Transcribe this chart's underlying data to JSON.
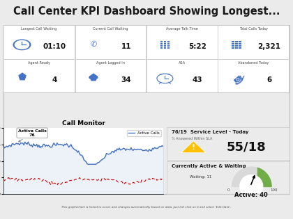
{
  "title": "Call Center KPI Dashboard Showing Longest...",
  "title_fontsize": 10.5,
  "bg_color": "#ebebeb",
  "card_bg": "#ffffff",
  "border_color": "#cccccc",
  "blue_icon_color": "#4472c4",
  "kpi_row1": [
    {
      "label": "Longest Call Waiting",
      "value": "01:10"
    },
    {
      "label": "Current Call Waiting",
      "value": "11"
    },
    {
      "label": "Average Talk Time",
      "value": "5:22"
    },
    {
      "label": "Total Calls Today",
      "value": "2,321"
    }
  ],
  "kpi_row2": [
    {
      "label": "Agent Ready",
      "value": "4"
    },
    {
      "label": "Agent Logged In",
      "value": "34"
    },
    {
      "label": "ASA",
      "value": "43"
    },
    {
      "label": "Abandoned Today",
      "value": "6"
    }
  ],
  "call_monitor_title": "Call Monitor",
  "active_calls_legend": "Active Calls",
  "active_calls_label": "Active Calls\n76",
  "blue_line_color": "#4472c4",
  "red_dashed_color": "#cc0000",
  "blue_fill_color": "#b8cce4",
  "service_level_title": "76/19  Service Level - Today",
  "service_level_sub": "% Answered Within SLA",
  "service_level_value": "55/18",
  "warning_color": "#ffc000",
  "active_waiting_title": "Currently Active & Waiting",
  "waiting_label": "Waiting: 11",
  "active_label": "Active: 40",
  "gauge_green": "#70ad47",
  "gauge_gray": "#d9d9d9",
  "gauge_max": 100,
  "gauge_value": 40,
  "footnote": "This graph/chart is linked to excel, and changes automatically based on data. Just left click on it and select 'Edit Data'.",
  "ylim_call_monitor": [
    0,
    100
  ],
  "yticks_call_monitor": [
    0,
    25,
    50,
    75,
    100
  ]
}
